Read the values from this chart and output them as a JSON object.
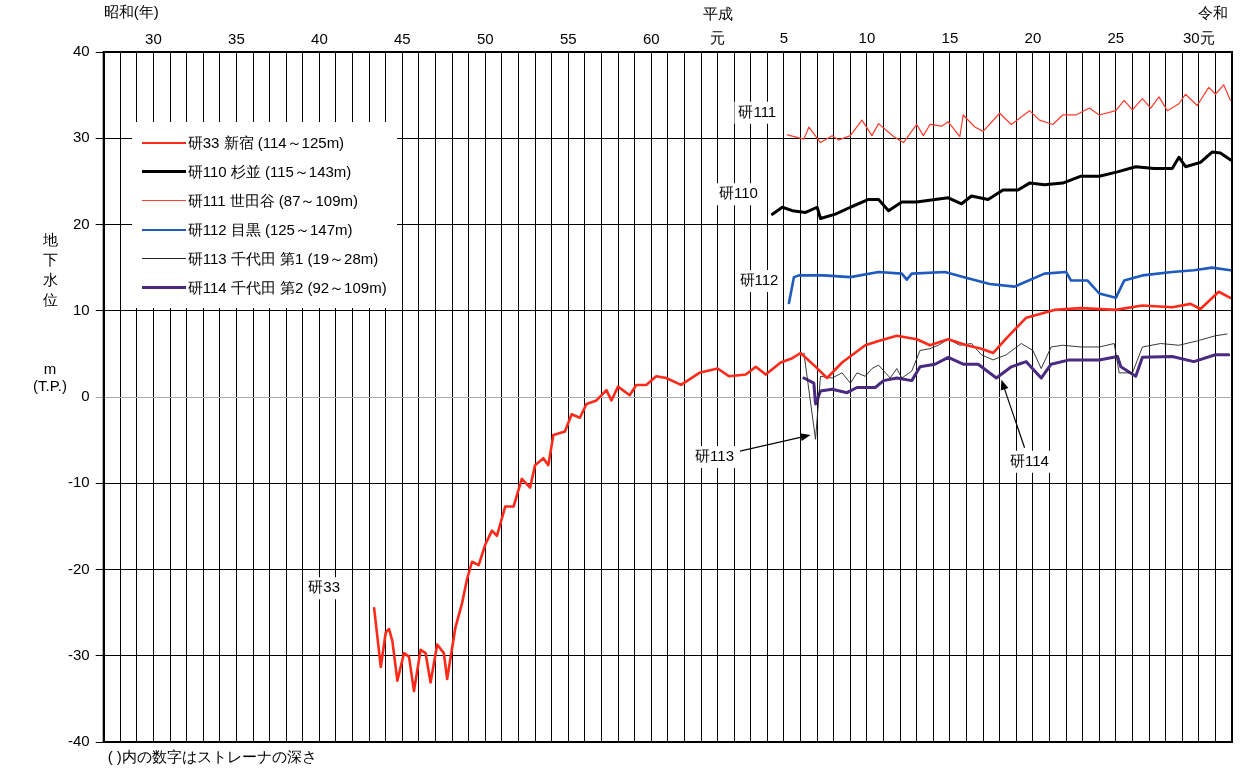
{
  "chart_data": {
    "type": "line",
    "xlabel": "昭和(年)",
    "x2label": "平成",
    "ylabel": "地下水位 m (T.P.)",
    "xlim": [
      27,
      95
    ],
    "ylim": [
      -40,
      40
    ],
    "x2lim": [
      -36,
      32
    ],
    "xticks": [
      {
        "value": 27,
        "label": null
      },
      {
        "value": 28,
        "label": null
      },
      {
        "value": 29,
        "label": null
      },
      30,
      {
        "value": 31,
        "label": null
      },
      {
        "value": 32,
        "label": null
      },
      {
        "value": 33,
        "label": null
      },
      {
        "value": 34,
        "label": null
      },
      35,
      {
        "value": 36,
        "label": null
      },
      {
        "value": 37,
        "label": null
      },
      {
        "value": 38,
        "label": null
      },
      {
        "value": 39,
        "label": null
      },
      40,
      {
        "value": 41,
        "label": null
      },
      {
        "value": 42,
        "label": null
      },
      {
        "value": 43,
        "label": null
      },
      {
        "value": 44,
        "label": null
      },
      45,
      {
        "value": 46,
        "label": null
      },
      {
        "value": 47,
        "label": null
      },
      {
        "value": 48,
        "label": null
      },
      {
        "value": 49,
        "label": null
      },
      50,
      {
        "value": 51,
        "label": null
      },
      {
        "value": 52,
        "label": null
      },
      {
        "value": 53,
        "label": null
      },
      {
        "value": 54,
        "label": null
      },
      55,
      {
        "value": 56,
        "label": null
      },
      {
        "value": 57,
        "label": null
      },
      {
        "value": 58,
        "label": null
      },
      {
        "value": 59,
        "label": null
      },
      60,
      {
        "value": 61,
        "label": null
      },
      {
        "value": 62,
        "label": null
      },
      {
        "value": 63,
        "label": null
      },
      {
        "value": 64,
        "label": null
      },
      {
        "value": 65,
        "label": null
      },
      {
        "value": 66,
        "label": null
      },
      {
        "value": 67,
        "label": null
      },
      {
        "value": 68,
        "label": null
      },
      {
        "value": 69,
        "label": null
      },
      {
        "value": 70,
        "label": null
      },
      {
        "value": 71,
        "label": null
      },
      {
        "value": 72,
        "label": null
      },
      {
        "value": 73,
        "label": null
      },
      {
        "value": 74,
        "label": null
      },
      {
        "value": 75,
        "label": null
      },
      {
        "value": 76,
        "label": null
      },
      {
        "value": 77,
        "label": null
      },
      {
        "value": 78,
        "label": null
      },
      {
        "value": 79,
        "label": null
      },
      {
        "value": 80,
        "label": null
      },
      {
        "value": 81,
        "label": null
      },
      {
        "value": 82,
        "label": null
      },
      {
        "value": 83,
        "label": null
      },
      {
        "value": 84,
        "label": null
      },
      {
        "value": 85,
        "label": null
      },
      {
        "value": 86,
        "label": null
      },
      {
        "value": 87,
        "label": null
      },
      {
        "value": 88,
        "label": null
      },
      {
        "value": 89,
        "label": null
      },
      {
        "value": 90,
        "label": null
      },
      {
        "value": 91,
        "label": null
      },
      {
        "value": 92,
        "label": null
      },
      {
        "value": 93,
        "label": null
      },
      {
        "value": 94,
        "label": null
      },
      {
        "value": 95,
        "label": null
      }
    ],
    "x2ticks": [
      {
        "value": 1,
        "label": "元"
      },
      5,
      10,
      15,
      20,
      25,
      {
        "value": 30,
        "label": "30元"
      }
    ],
    "yticks": [
      -40,
      -30,
      -20,
      -10,
      0,
      10,
      20,
      30,
      40
    ],
    "grid": true,
    "legend": "top left",
    "series": [
      {
        "name": "研33 新宿 (114～125m)",
        "color": "#ff2a1a",
        "x": [
          43.3,
          43.7,
          44.0,
          44.2,
          44.4,
          44.7,
          45.1,
          45.4,
          45.7,
          46.1,
          46.4,
          46.7,
          47.1,
          47.5,
          47.7,
          48.2,
          48.6,
          48.9,
          49.2,
          49.6,
          50.0,
          50.4,
          50.7,
          51.2,
          51.7,
          52.2,
          52.7,
          53.0,
          53.5,
          53.8,
          54.1,
          54.8,
          55.2,
          55.7,
          56.1,
          56.7,
          57.3,
          57.6,
          58.0,
          58.7,
          59.1,
          59.7,
          60.3,
          60.9,
          61.8,
          62.9,
          64.0,
          64.7,
          65.7,
          66.3,
          66.9,
          67.8,
          68.5,
          69.0,
          69.8,
          70.6,
          71.5,
          72.9,
          73.7,
          74.8,
          76.0,
          76.8,
          77.9,
          79.0,
          79.9,
          80.6,
          81.4,
          82.6,
          84.3,
          85.9,
          88.0,
          89.6,
          91.4,
          92.5,
          93.1,
          94.2,
          94.9
        ],
        "values": [
          -24.5,
          -31.3,
          -27.3,
          -26.9,
          -28.3,
          -32.9,
          -29.7,
          -30.1,
          -34.1,
          -29.3,
          -29.7,
          -33.1,
          -28.7,
          -29.7,
          -32.7,
          -26.7,
          -23.9,
          -21.1,
          -19.1,
          -19.5,
          -17.1,
          -15.5,
          -16.1,
          -12.7,
          -12.7,
          -9.5,
          -10.5,
          -7.9,
          -7.1,
          -7.9,
          -4.4,
          -4.0,
          -2.0,
          -2.4,
          -0.8,
          -0.4,
          0.8,
          -0.4,
          1.2,
          0.2,
          1.4,
          1.4,
          2.4,
          2.2,
          1.4,
          2.8,
          3.3,
          2.4,
          2.6,
          3.5,
          2.6,
          4.0,
          4.5,
          5.1,
          3.7,
          2.2,
          4.0,
          6.0,
          6.5,
          7.1,
          6.7,
          6.0,
          6.7,
          6.0,
          5.6,
          5.1,
          6.8,
          9.2,
          10.1,
          10.3,
          10.1,
          10.6,
          10.4,
          10.8,
          10.2,
          12.2,
          11.5
        ]
      },
      {
        "name": "研110 杉並 (115～143m)",
        "color": "#000000",
        "x": [
          67.3,
          67.9,
          68.5,
          69.3,
          70.0,
          70.2,
          71.1,
          72.0,
          73.1,
          73.7,
          74.3,
          75.1,
          76.0,
          77.1,
          77.9,
          78.7,
          79.3,
          80.3,
          81.2,
          82.1,
          82.8,
          83.7,
          84.8,
          85.9,
          87.0,
          88.1,
          89.2,
          90.3,
          91.4,
          91.8,
          92.2,
          93.1,
          93.8,
          94.3,
          94.9
        ],
        "values": [
          21.2,
          22.0,
          21.6,
          21.4,
          22.0,
          20.7,
          21.2,
          22.0,
          22.9,
          22.9,
          21.6,
          22.6,
          22.6,
          22.9,
          23.1,
          22.4,
          23.3,
          22.9,
          24.0,
          24.0,
          24.8,
          24.6,
          24.8,
          25.6,
          25.6,
          26.1,
          26.7,
          26.5,
          26.5,
          27.8,
          26.7,
          27.2,
          28.4,
          28.3,
          27.5
        ]
      },
      {
        "name": "研111 世田谷 (87～109m)",
        "color": "#ff3b2b",
        "x": [
          68.2,
          69.2,
          69.5,
          70.2,
          70.9,
          71.3,
          72.0,
          72.7,
          73.3,
          73.7,
          74.6,
          75.2,
          76.0,
          76.4,
          76.8,
          77.5,
          77.9,
          78.6,
          78.8,
          79.5,
          80.0,
          81.0,
          81.7,
          82.8,
          83.4,
          84.2,
          84.8,
          85.6,
          86.4,
          87.0,
          88.0,
          88.5,
          89.0,
          89.6,
          90.1,
          90.6,
          91.1,
          91.8,
          92.2,
          92.9,
          93.6,
          94.0,
          94.5,
          94.9
        ],
        "values": [
          30.4,
          29.9,
          31.3,
          29.5,
          30.3,
          29.8,
          30.3,
          32.1,
          30.3,
          31.7,
          30.2,
          29.5,
          31.6,
          30.3,
          31.6,
          31.4,
          31.9,
          30.2,
          32.7,
          31.3,
          30.8,
          32.9,
          31.6,
          33.2,
          32.1,
          31.6,
          32.7,
          32.7,
          33.5,
          32.7,
          33.2,
          34.4,
          33.3,
          34.6,
          33.5,
          34.8,
          33.2,
          34.0,
          35.1,
          33.8,
          35.9,
          35.1,
          36.2,
          34.4
        ]
      },
      {
        "name": "研112 目黒 (125～147m)",
        "color": "#1f5bbf",
        "x": [
          68.3,
          68.6,
          68.9,
          70.4,
          72.0,
          73.7,
          75.1,
          75.4,
          75.7,
          77.7,
          78.8,
          80.4,
          81.9,
          83.7,
          85.0,
          85.3,
          86.3,
          87.0,
          88.0,
          88.5,
          89.6,
          91.4,
          92.7,
          93.8,
          94.9
        ],
        "values": [
          10.9,
          13.9,
          14.1,
          14.1,
          13.9,
          14.5,
          14.3,
          13.6,
          14.3,
          14.5,
          13.9,
          13.1,
          12.8,
          14.3,
          14.5,
          13.5,
          13.5,
          12.0,
          11.5,
          13.5,
          14.1,
          14.5,
          14.7,
          15.0,
          14.7
        ]
      },
      {
        "name": "研113 千代田 第1 (19～28m)",
        "color": "#222222",
        "x": [
          69.2,
          69.9,
          70.2,
          70.9,
          71.5,
          72.0,
          72.4,
          72.9,
          73.3,
          73.7,
          74.4,
          74.8,
          75.1,
          75.7,
          76.2,
          76.8,
          77.3,
          77.9,
          78.6,
          79.3,
          79.9,
          80.6,
          81.4,
          82.3,
          83.0,
          83.5,
          84.1,
          84.8,
          85.9,
          87.0,
          87.9,
          88.2,
          89.0,
          89.6,
          90.7,
          91.8,
          92.9,
          94.0,
          94.7
        ],
        "values": [
          5.1,
          -4.9,
          2.4,
          2.2,
          2.8,
          1.6,
          2.8,
          2.4,
          3.3,
          3.7,
          2.2,
          3.3,
          2.2,
          3.0,
          5.4,
          5.6,
          6.0,
          6.7,
          6.0,
          6.2,
          4.9,
          4.3,
          4.9,
          6.2,
          5.4,
          3.3,
          5.8,
          6.0,
          5.8,
          5.8,
          6.2,
          2.8,
          2.8,
          5.8,
          6.2,
          6.0,
          6.5,
          7.1,
          7.3
        ]
      },
      {
        "name": "研114 千代田 第2 (92～109m)",
        "color": "#4b2a82",
        "x": [
          69.2,
          69.8,
          69.9,
          70.2,
          70.9,
          71.8,
          72.4,
          73.5,
          74.0,
          74.8,
          75.7,
          76.2,
          77.1,
          77.9,
          78.8,
          79.7,
          80.8,
          81.7,
          82.6,
          83.5,
          84.1,
          85.2,
          87.0,
          88.1,
          88.3,
          89.2,
          89.6,
          91.4,
          92.7,
          94.0,
          94.8
        ],
        "values": [
          2.2,
          1.6,
          -0.8,
          0.7,
          0.9,
          0.5,
          1.1,
          1.1,
          1.9,
          2.2,
          1.9,
          3.5,
          3.8,
          4.6,
          3.8,
          3.8,
          2.2,
          3.5,
          4.1,
          2.2,
          3.8,
          4.3,
          4.3,
          4.7,
          3.5,
          2.4,
          4.6,
          4.7,
          4.1,
          4.9,
          4.9
        ]
      }
    ],
    "annotations": [
      {
        "text": "研111",
        "x": 68.2,
        "y": 30.4
      },
      {
        "text": "研110",
        "x": 67.3,
        "y": 21.2
      },
      {
        "text": "研112",
        "x": 68.3,
        "y": 10.9
      },
      {
        "text": "研113",
        "x": 69.6,
        "y": -4.4
      },
      {
        "text": "研114",
        "x": 81.1,
        "y": 2.0
      },
      {
        "text": "研33",
        "x": 43.3,
        "y": -24.5
      },
      "令和",
      "( )内の数字はストレーナの深さ"
    ]
  }
}
